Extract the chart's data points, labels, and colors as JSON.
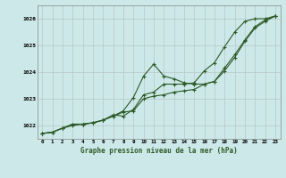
{
  "title": "Graphe pression niveau de la mer (hPa)",
  "bg_color": "#cce8e8",
  "grid_color": "#b8c8c8",
  "line_color": "#2d5a27",
  "x_labels": [
    "0",
    "1",
    "2",
    "3",
    "4",
    "5",
    "6",
    "7",
    "8",
    "9",
    "10",
    "11",
    "12",
    "13",
    "14",
    "15",
    "16",
    "17",
    "18",
    "19",
    "20",
    "21",
    "22",
    "23"
  ],
  "ylim": [
    1021.5,
    1026.5
  ],
  "yticks": [
    1022,
    1023,
    1024,
    1025,
    1026
  ],
  "series1": [
    1021.7,
    1021.75,
    1021.9,
    1022.05,
    1022.05,
    1022.1,
    1022.2,
    1022.35,
    1022.5,
    1022.55,
    1023.0,
    1023.1,
    1023.15,
    1023.25,
    1023.3,
    1023.35,
    1023.55,
    1023.65,
    1024.05,
    1024.55,
    1025.15,
    1025.65,
    1025.9,
    1026.1
  ],
  "series2": [
    1021.7,
    1021.75,
    1021.9,
    1022.0,
    1022.05,
    1022.1,
    1022.2,
    1022.35,
    1022.55,
    1023.05,
    1023.85,
    1024.3,
    1023.85,
    1023.75,
    1023.6,
    1023.55,
    1023.55,
    1023.65,
    1024.15,
    1024.65,
    1025.2,
    1025.7,
    1025.95,
    1026.1
  ],
  "series3": [
    1021.7,
    1021.75,
    1021.9,
    1022.05,
    1022.05,
    1022.1,
    1022.2,
    1022.4,
    1022.35,
    1022.6,
    1023.15,
    1023.25,
    1023.55,
    1023.55,
    1023.55,
    1023.6,
    1024.05,
    1024.35,
    1024.95,
    1025.5,
    1025.9,
    1026.0,
    1026.0,
    1026.1
  ],
  "figsize": [
    3.2,
    2.0
  ],
  "dpi": 100
}
